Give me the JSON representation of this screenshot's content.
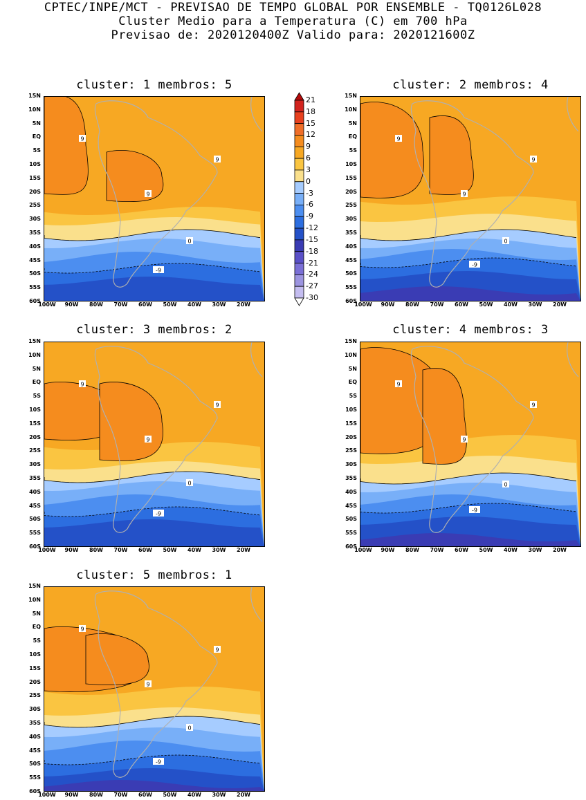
{
  "header": {
    "line1": "CPTEC/INPE/MCT - PREVISAO DE TEMPO GLOBAL POR ENSEMBLE - TQ0126L028",
    "line2": "Cluster Medio para a Temperatura (C) em 700 hPa",
    "line3": "Previsao de: 2020120400Z   Valido para: 2020121600Z"
  },
  "panels": [
    {
      "title": "cluster: 1   membros: 5"
    },
    {
      "title": "cluster: 2   membros: 4"
    },
    {
      "title": "cluster: 3   membros: 2"
    },
    {
      "title": "cluster: 4   membros: 3"
    },
    {
      "title": "cluster: 5   membros: 1"
    }
  ],
  "lat_ticks": [
    "15N",
    "10N",
    "5N",
    "EQ",
    "5S",
    "10S",
    "15S",
    "20S",
    "25S",
    "30S",
    "35S",
    "40S",
    "45S",
    "50S",
    "55S",
    "60S"
  ],
  "lon_ticks": [
    "100W",
    "90W",
    "80W",
    "70W",
    "60W",
    "50W",
    "40W",
    "30W",
    "20W"
  ],
  "colorbar": {
    "levels": [
      "21",
      "18",
      "15",
      "12",
      "9",
      "6",
      "3",
      "0",
      "-3",
      "-6",
      "-9",
      "-12",
      "-15",
      "-18",
      "-21",
      "-24",
      "-27",
      "-30"
    ],
    "colors": [
      "#b40a0a",
      "#d2231e",
      "#e8401e",
      "#f06e28",
      "#f58c1e",
      "#f7a823",
      "#fac541",
      "#fae08c",
      "#a6ccff",
      "#78aff8",
      "#4c8ef0",
      "#2c6ee0",
      "#2451c8",
      "#3a3cb4",
      "#5a50c8",
      "#7a6fd6",
      "#9c94e0",
      "#c4bdf0",
      "#ffffff"
    ]
  },
  "contour_labels": {
    "warm": "9",
    "zero": "0",
    "cold": "-9"
  }
}
